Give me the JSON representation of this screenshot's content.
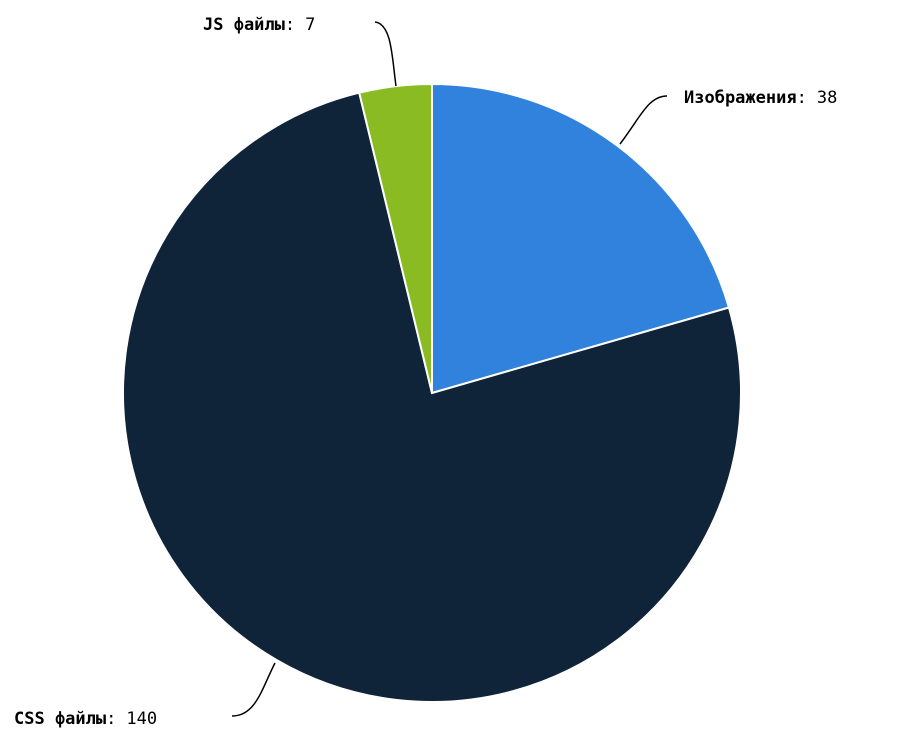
{
  "chart_data": {
    "type": "pie",
    "categories": [
      "Изображения",
      "CSS файлы",
      "JS файлы"
    ],
    "values": [
      38,
      140,
      7
    ],
    "colors": [
      "#3182dc",
      "#0f2339",
      "#8bbb22"
    ],
    "separator": ":",
    "start_angle_deg": 0,
    "direction": "clockwise",
    "legend": "none"
  }
}
